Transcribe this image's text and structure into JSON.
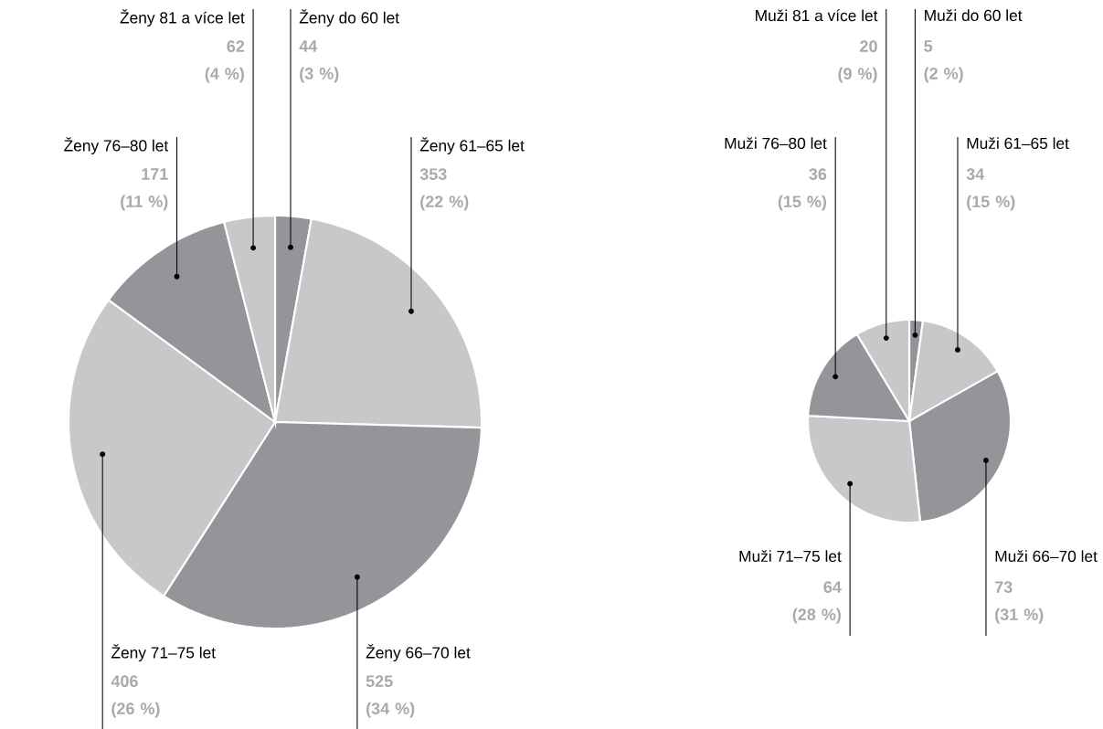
{
  "chart_data": [
    {
      "type": "pie",
      "categories": [
        "Ženy do 60 let",
        "Ženy 61–65 let",
        "Ženy 66–70 let",
        "Ženy 71–75 let",
        "Ženy 76–80 let",
        "Ženy 81 a více let"
      ],
      "values": [
        44,
        353,
        525,
        406,
        171,
        62
      ],
      "colors": [
        "#939598",
        "#c7c8ca",
        "#939598",
        "#c7c8ca",
        "#939598",
        "#c7c8ca"
      ],
      "value_labels": [
        "44 (3 %)",
        "353 (22 %)",
        "525 (34 %)",
        "406 (26 %)",
        "171 (11 %)",
        "62 (4 %)"
      ]
    },
    {
      "type": "pie",
      "categories": [
        "Muži do 60 let",
        "Muži 61–65 let",
        "Muži 66–70 let",
        "Muži 71–75 let",
        "Muži 76–80 let",
        "Muži 81 a více let"
      ],
      "values": [
        5,
        34,
        73,
        64,
        36,
        20
      ],
      "colors": [
        "#939598",
        "#c7c8ca",
        "#939598",
        "#c7c8ca",
        "#939598",
        "#c7c8ca"
      ],
      "value_labels": [
        "5 (2 %)",
        "34 (15 %)",
        "73 (31 %)",
        "64 (28 %)",
        "36 (15 %)",
        "20 (9 %)"
      ]
    }
  ]
}
